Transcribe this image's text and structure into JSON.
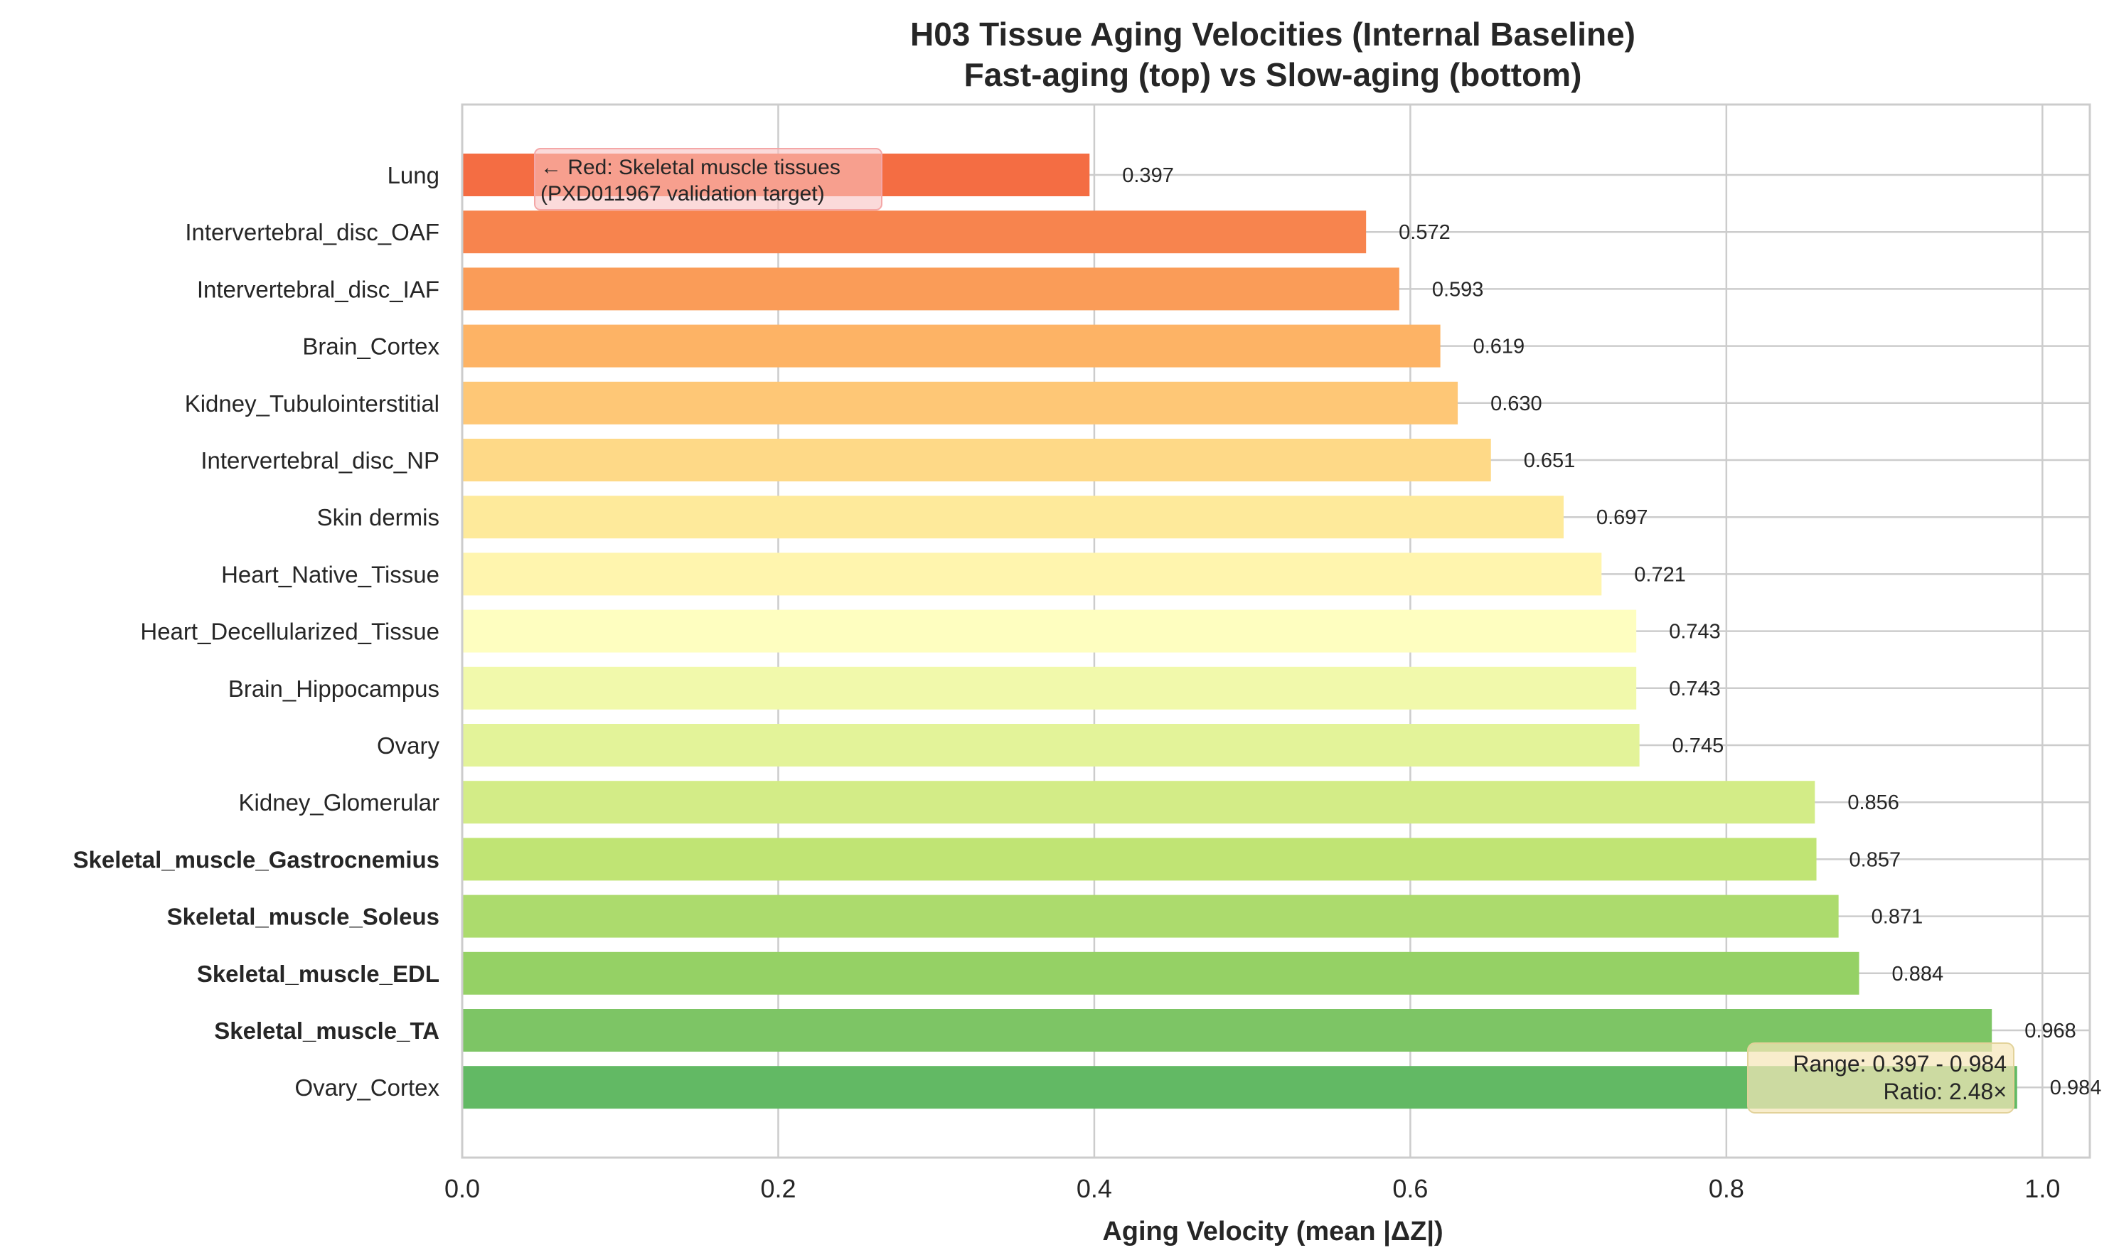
{
  "chart_data": {
    "type": "bar",
    "orientation": "horizontal",
    "title": [
      "H03 Tissue Aging Velocities (Internal Baseline)",
      "Fast-aging (top) vs Slow-aging (bottom)"
    ],
    "xlabel": "Aging Velocity (mean |ΔZ|)",
    "ylabel": "",
    "xlim": [
      0,
      1.03
    ],
    "x_ticks": [
      "0.0",
      "0.2",
      "0.4",
      "0.6",
      "0.8",
      "1.0"
    ],
    "grid": true,
    "categories": [
      "Lung",
      "Intervertebral_disc_OAF",
      "Intervertebral_disc_IAF",
      "Brain_Cortex",
      "Kidney_Tubulointerstitial",
      "Intervertebral_disc_NP",
      "Skin dermis",
      "Heart_Native_Tissue",
      "Heart_Decellularized_Tissue",
      "Brain_Hippocampus",
      "Ovary",
      "Kidney_Glomerular",
      "Skeletal_muscle_Gastrocnemius",
      "Skeletal_muscle_Soleus",
      "Skeletal_muscle_EDL",
      "Skeletal_muscle_TA",
      "Ovary_Cortex"
    ],
    "values": [
      0.397,
      0.572,
      0.593,
      0.619,
      0.63,
      0.651,
      0.697,
      0.721,
      0.743,
      0.743,
      0.745,
      0.856,
      0.857,
      0.871,
      0.884,
      0.968,
      0.984
    ],
    "value_labels": [
      "0.397",
      "0.572",
      "0.593",
      "0.619",
      "0.630",
      "0.651",
      "0.697",
      "0.721",
      "0.743",
      "0.743",
      "0.745",
      "0.856",
      "0.857",
      "0.871",
      "0.884",
      "0.968",
      "0.984"
    ],
    "bar_colors": [
      "#f46d43",
      "#f7844e",
      "#fa9c58",
      "#fdb365",
      "#fec776",
      "#fed987",
      "#feea9b",
      "#fff5ae",
      "#fefec0",
      "#f1f9ab",
      "#e3f399",
      "#d3ec87",
      "#c0e474",
      "#acdb6d",
      "#95d165",
      "#7dc565",
      "#62b964"
    ],
    "highlight_color": "#ff0000",
    "highlight_categories": [
      "Skeletal_muscle_Gastrocnemius",
      "Skeletal_muscle_Soleus",
      "Skeletal_muscle_EDL",
      "Skeletal_muscle_TA"
    ],
    "annotation_top": [
      "← Red: Skeletal muscle tissues",
      "(PXD011967 validation target)"
    ],
    "annotation_bottom": [
      "Range: 0.397 - 0.984",
      "Ratio: 2.48×"
    ]
  }
}
